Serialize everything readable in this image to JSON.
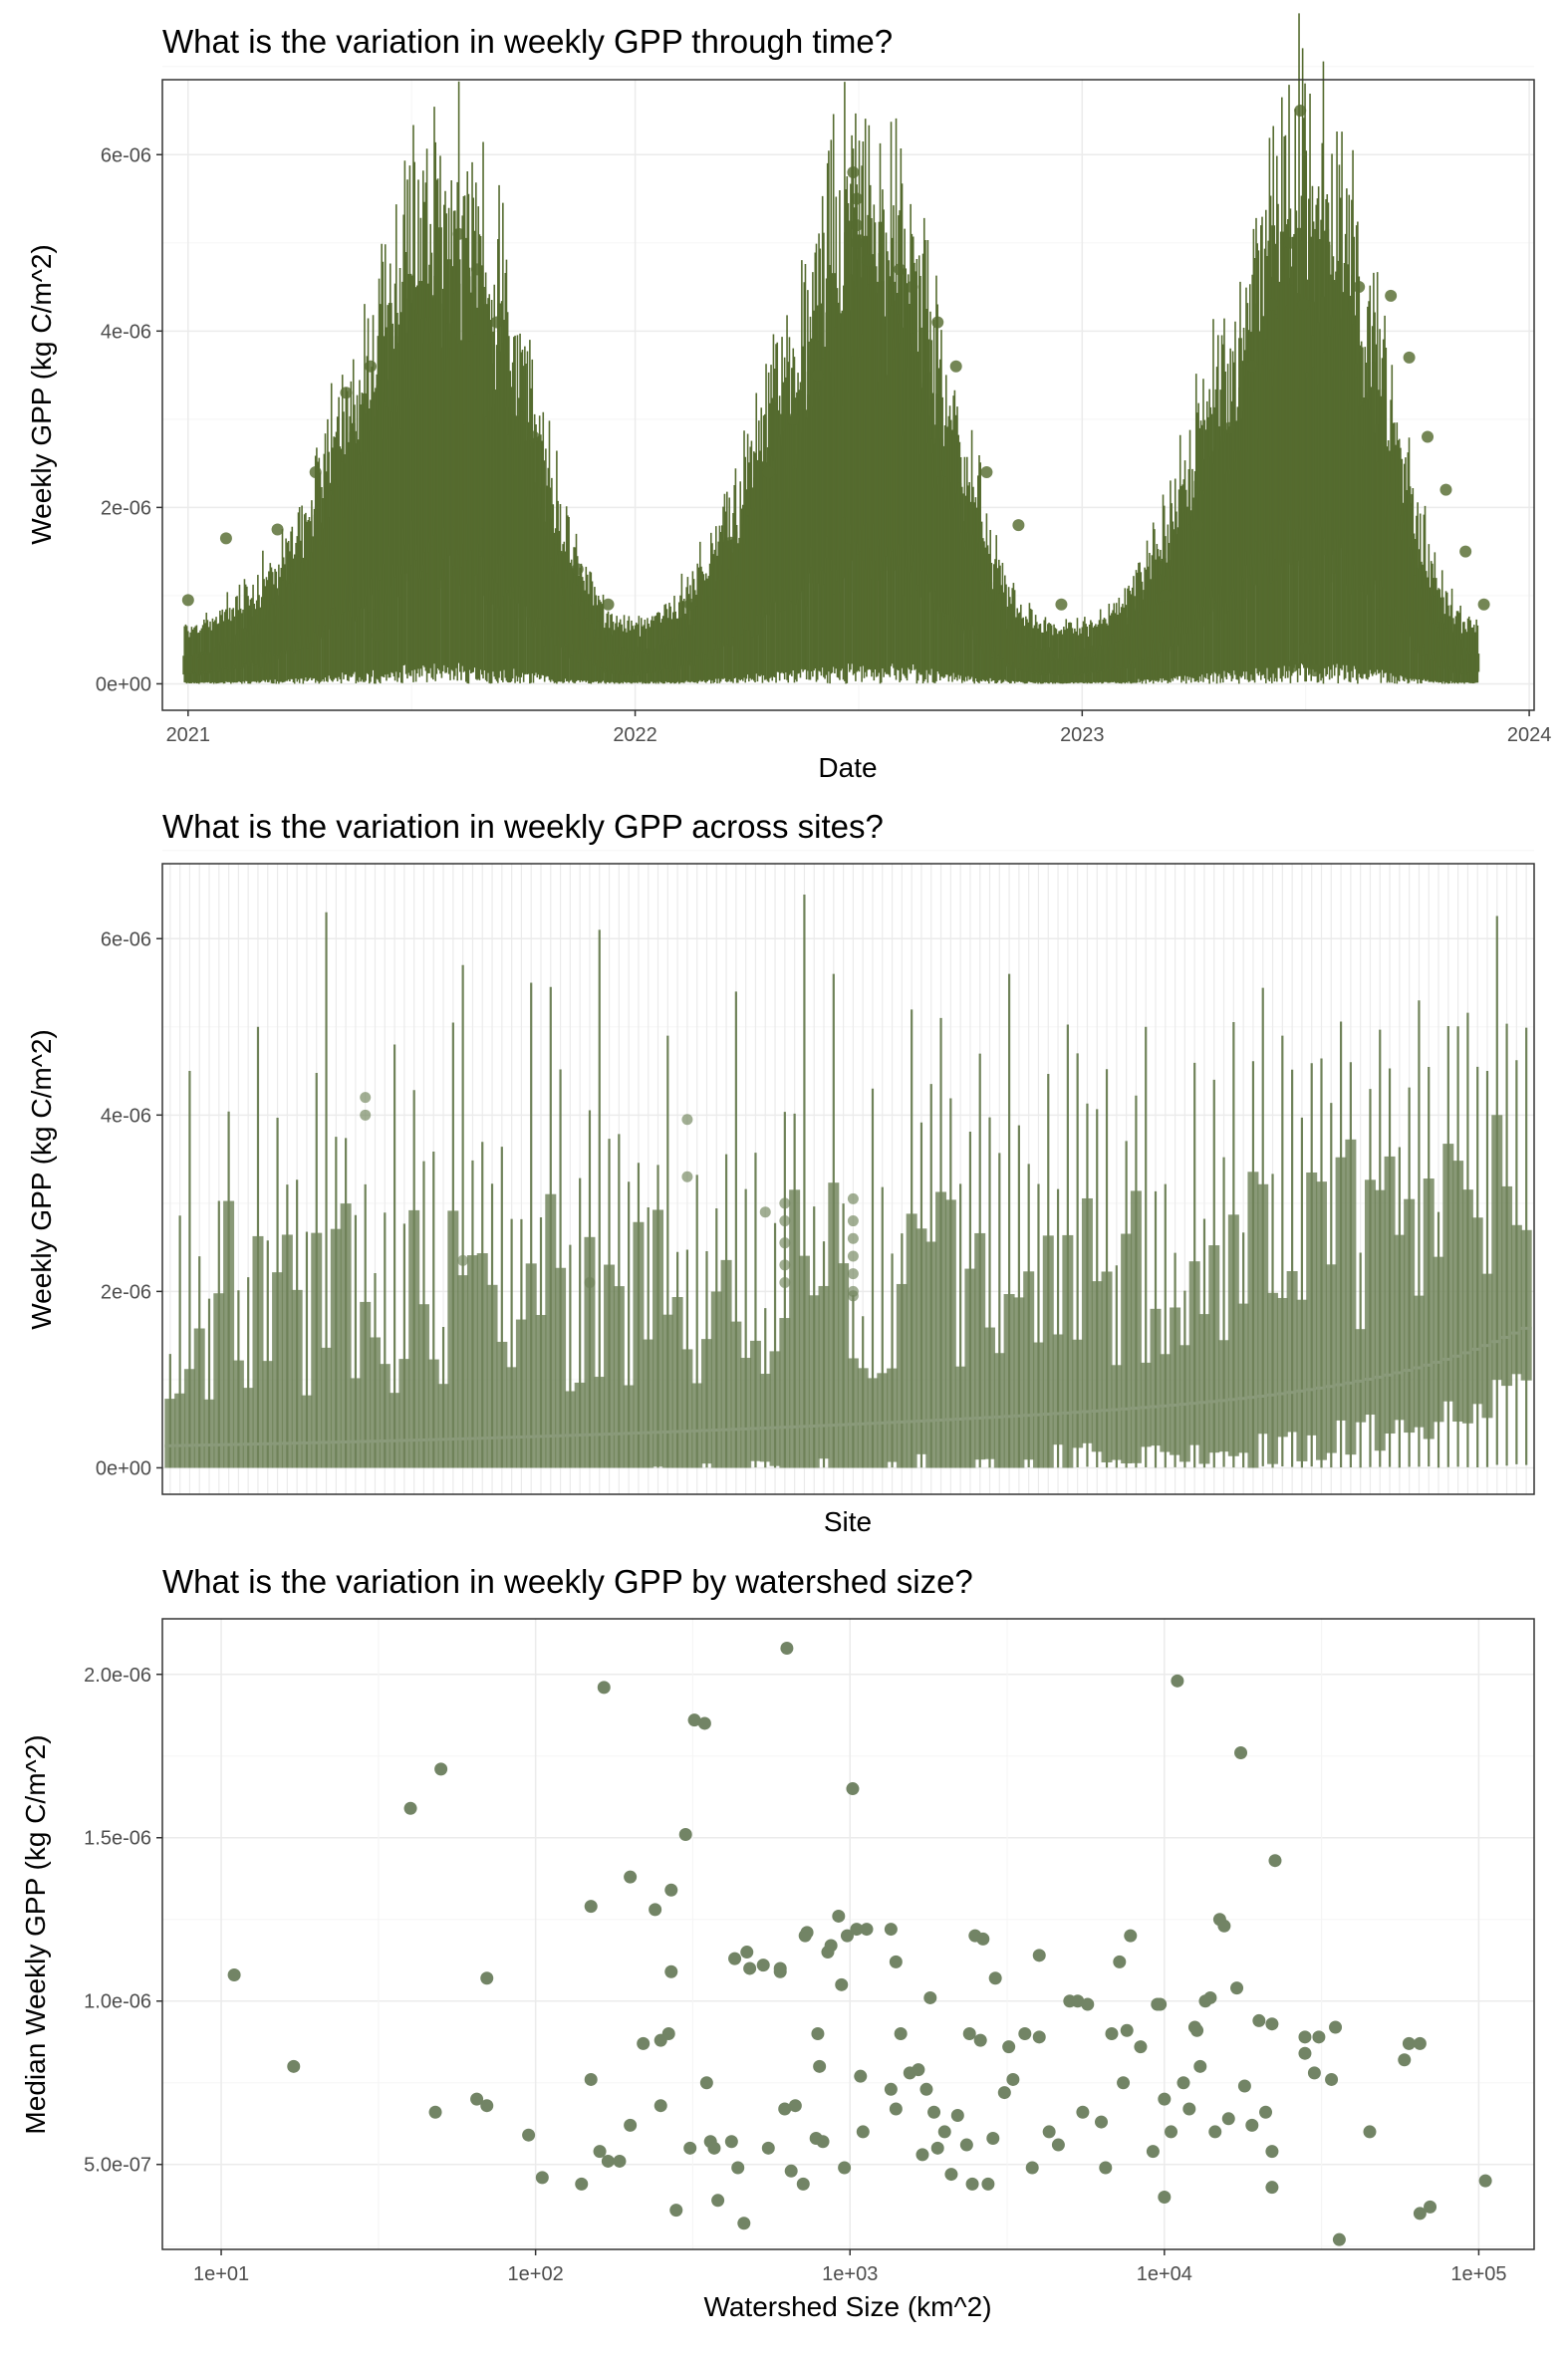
{
  "colors": {
    "time_series": "#556b2f",
    "site_series": "#6f8259",
    "watershed_points": "#728465",
    "panel_border": "#333333",
    "grid_major": "#ebebeb",
    "grid_minor": "#f5f5f5",
    "tick_text": "#4d4d4d"
  },
  "chart_data": [
    {
      "type": "box",
      "title": "What is the variation in weekly GPP through time?",
      "xlabel": "Date",
      "ylabel": "Weekly GPP (kg C/m^2)",
      "x_ticks": [
        "2021",
        "2022",
        "2023",
        "2024"
      ],
      "xlim": [
        "2020-12-11",
        "2024-01-05"
      ],
      "y_ticks": [
        "0e+00",
        "2e-06",
        "4e-06",
        "6e-06"
      ],
      "ylim": [
        -3e-07,
        6.85e-06
      ],
      "grid": true,
      "legend": "none",
      "weeks_first": "2021-01-01",
      "weeks_last": "2023-11-24",
      "weekly_medians": [
        2e-07,
        2.2e-07,
        2.4e-07,
        2.6e-07,
        2.9e-07,
        3.2e-07,
        3.6e-07,
        4e-07,
        4.5e-07,
        5.1e-07,
        5.8e-07,
        6.6e-07,
        7.5e-07,
        8.5e-07,
        9.6e-07,
        1.08e-06,
        1.2e-06,
        1.33e-06,
        1.46e-06,
        1.6e-06,
        1.74e-06,
        1.88e-06,
        2.02e-06,
        2.16e-06,
        2.3e-06,
        2.45e-06,
        2.58e-06,
        2.7e-06,
        2.78e-06,
        2.83e-06,
        2.85e-06,
        2.82e-06,
        2.76e-06,
        2.68e-06,
        2.58e-06,
        2.45e-06,
        2.3e-06,
        2.14e-06,
        1.96e-06,
        1.78e-06,
        1.6e-06,
        1.4e-06,
        1.2e-06,
        1.02e-06,
        8.5e-07,
        7e-07,
        5.7e-07,
        4.6e-07,
        3.7e-07,
        3e-07,
        2.6e-07,
        2.3e-07,
        2.2e-07,
        2.3e-07,
        2.5e-07,
        2.8e-07,
        3.2e-07,
        3.7e-07,
        4.3e-07,
        5e-07,
        5.8e-07,
        6.7e-07,
        7.7e-07,
        8.8e-07,
        1e-06,
        1.13e-06,
        1.27e-06,
        1.41e-06,
        1.56e-06,
        1.71e-06,
        1.86e-06,
        2e-06,
        2.14e-06,
        2.28e-06,
        2.42e-06,
        2.55e-06,
        2.67e-06,
        2.76e-06,
        2.82e-06,
        2.85e-06,
        2.83e-06,
        2.78e-06,
        2.7e-06,
        2.6e-06,
        2.47e-06,
        2.32e-06,
        2.15e-06,
        1.97e-06,
        1.78e-06,
        1.58e-06,
        1.38e-06,
        1.19e-06,
        1e-06,
        8.3e-07,
        6.7e-07,
        5.4e-07,
        4.3e-07,
        3.4e-07,
        2.8e-07,
        2.4e-07,
        2.2e-07,
        2.1e-07,
        2e-07,
        2e-07,
        2.1e-07,
        2.3e-07,
        2.6e-07,
        3e-07,
        3.5e-07,
        4.1e-07,
        4.8e-07,
        5.6e-07,
        6.5e-07,
        7.5e-07,
        8.6e-07,
        9.8e-07,
        1.11e-06,
        1.25e-06,
        1.4e-06,
        1.56e-06,
        1.72e-06,
        1.88e-06,
        2.04e-06,
        2.2e-06,
        2.36e-06,
        2.51e-06,
        2.65e-06,
        2.78e-06,
        2.88e-06,
        2.95e-06,
        2.98e-06,
        2.97e-06,
        2.92e-06,
        2.84e-06,
        2.73e-06,
        2.6e-06,
        2.44e-06,
        2.26e-06,
        2.06e-06,
        1.84e-06,
        1.62e-06,
        1.4e-06,
        1.18e-06,
        9.7e-07,
        7.8e-07,
        6.2e-07,
        4.8e-07,
        3.7e-07,
        2.9e-07,
        2.4e-07,
        2.1e-07
      ],
      "outliers": [
        {
          "x": "2021-01-01",
          "y": 9.5e-07
        },
        {
          "x": "2021-02-01",
          "y": 1.65e-06
        },
        {
          "x": "2021-03-15",
          "y": 1.75e-06
        },
        {
          "x": "2021-04-15",
          "y": 2.4e-06
        },
        {
          "x": "2021-05-10",
          "y": 3.3e-06
        },
        {
          "x": "2021-05-30",
          "y": 3.6e-06
        },
        {
          "x": "2021-06-05",
          "y": 5.5e-07
        },
        {
          "x": "2021-08-10",
          "y": 5.1e-06
        },
        {
          "x": "2021-08-25",
          "y": 4.7e-06
        },
        {
          "x": "2021-09-10",
          "y": 4.1e-06
        },
        {
          "x": "2021-10-10",
          "y": 2.8e-06
        },
        {
          "x": "2021-11-15",
          "y": 1.3e-06
        },
        {
          "x": "2021-12-10",
          "y": 9e-07
        },
        {
          "x": "2022-02-15",
          "y": 9e-07
        },
        {
          "x": "2022-03-20",
          "y": 1.6e-06
        },
        {
          "x": "2022-04-20",
          "y": 2.4e-06
        },
        {
          "x": "2022-05-10",
          "y": 3e-06
        },
        {
          "x": "2022-05-30",
          "y": 3.5e-06
        },
        {
          "x": "2022-06-28",
          "y": 5.8e-06
        },
        {
          "x": "2022-07-01",
          "y": 5.5e-06
        },
        {
          "x": "2022-07-01",
          "y": 5.2e-06
        },
        {
          "x": "2022-07-01",
          "y": 5e-06
        },
        {
          "x": "2022-07-10",
          "y": 4.8e-06
        },
        {
          "x": "2022-08-05",
          "y": 4.7e-06
        },
        {
          "x": "2022-08-15",
          "y": 4.5e-06
        },
        {
          "x": "2022-09-05",
          "y": 4.1e-06
        },
        {
          "x": "2022-09-20",
          "y": 3.6e-06
        },
        {
          "x": "2022-10-15",
          "y": 2.4e-06
        },
        {
          "x": "2022-11-10",
          "y": 1.8e-06
        },
        {
          "x": "2022-12-15",
          "y": 9e-07
        },
        {
          "x": "2023-03-10",
          "y": 1e-06
        },
        {
          "x": "2023-04-05",
          "y": 1.8e-06
        },
        {
          "x": "2023-05-01",
          "y": 2.9e-06
        },
        {
          "x": "2023-05-20",
          "y": 3.6e-06
        },
        {
          "x": "2023-06-05",
          "y": 4.3e-06
        },
        {
          "x": "2023-06-20",
          "y": 5e-06
        },
        {
          "x": "2023-06-22",
          "y": 2e-07
        },
        {
          "x": "2023-06-28",
          "y": 6.5e-06
        },
        {
          "x": "2023-07-01",
          "y": 4.3e-06
        },
        {
          "x": "2023-07-02",
          "y": 4e-07
        },
        {
          "x": "2023-07-10",
          "y": 1.5e-07
        },
        {
          "x": "2023-08-15",
          "y": 4.5e-06
        },
        {
          "x": "2023-09-10",
          "y": 4.4e-06
        },
        {
          "x": "2023-09-25",
          "y": 3.7e-06
        },
        {
          "x": "2023-10-10",
          "y": 2.8e-06
        },
        {
          "x": "2023-10-25",
          "y": 2.2e-06
        },
        {
          "x": "2023-11-10",
          "y": 1.5e-06
        },
        {
          "x": "2023-11-25",
          "y": 9e-07
        }
      ]
    },
    {
      "type": "box",
      "title": "What is the variation in weekly GPP across sites?",
      "xlabel": "Site",
      "ylabel": "Weekly GPP (kg C/m^2)",
      "y_ticks": [
        "0e+00",
        "2e-06",
        "4e-06",
        "6e-06"
      ],
      "ylim": [
        -3e-07,
        6.85e-06
      ],
      "grid": true,
      "legend": "none",
      "site_count": 140,
      "median_range": [
        2.5e-07,
        2.1e-06
      ],
      "whisker_max": [
        4.5e-06,
        5e-06,
        6.3e-06,
        4.8e-06,
        5.7e-06,
        5.5e-06,
        6.1e-06,
        4.9e-06,
        5.4e-06,
        6.5e-06,
        4.3e-06,
        5.1e-06,
        5.6e-06,
        4.7e-06,
        5e-06,
        4.4e-06,
        4.9e-06,
        4.6e-06,
        5.3e-06,
        4.5e-06,
        4.8e-06,
        5.1e-06
      ],
      "outliers": [
        {
          "site": 20,
          "y": 4.2e-06
        },
        {
          "site": 20,
          "y": 4e-06
        },
        {
          "site": 30,
          "y": 2.35e-06
        },
        {
          "site": 43,
          "y": 2.1e-06
        },
        {
          "site": 53,
          "y": 3.95e-06
        },
        {
          "site": 53,
          "y": 3.3e-06
        },
        {
          "site": 61,
          "y": 2.9e-06
        },
        {
          "site": 63,
          "y": 3e-06
        },
        {
          "site": 63,
          "y": 2.8e-06
        },
        {
          "site": 63,
          "y": 2.55e-06
        },
        {
          "site": 63,
          "y": 2.3e-06
        },
        {
          "site": 63,
          "y": 2.1e-06
        },
        {
          "site": 70,
          "y": 3.05e-06
        },
        {
          "site": 70,
          "y": 2.8e-06
        },
        {
          "site": 70,
          "y": 2.6e-06
        },
        {
          "site": 70,
          "y": 2.4e-06
        },
        {
          "site": 70,
          "y": 2.2e-06
        },
        {
          "site": 70,
          "y": 2e-06
        },
        {
          "site": 70,
          "y": 1.95e-06
        }
      ]
    },
    {
      "type": "scatter",
      "title": "What is the variation in weekly GPP by watershed size?",
      "xlabel": "Watershed Size (km^2)",
      "ylabel": "Median Weekly GPP (kg C/m^2)",
      "x_scale": "log10",
      "x_ticks": [
        "1e+01",
        "1e+02",
        "1e+03",
        "1e+04",
        "1e+05"
      ],
      "xlim": [
        6.5,
        150000
      ],
      "y_ticks": [
        "5.0e-07",
        "1.0e-06",
        "1.5e-06",
        "2.0e-06"
      ],
      "ylim": [
        2.4e-07,
        2.17e-06
      ],
      "grid": true,
      "legend": "none",
      "points": [
        {
          "x": 11,
          "y": 1.08e-06
        },
        {
          "x": 17,
          "y": 8e-07
        },
        {
          "x": 40,
          "y": 1.59e-06
        },
        {
          "x": 48,
          "y": 6.6e-07
        },
        {
          "x": 50,
          "y": 1.71e-06
        },
        {
          "x": 65,
          "y": 7e-07
        },
        {
          "x": 70,
          "y": 6.8e-07
        },
        {
          "x": 70,
          "y": 1.07e-06
        },
        {
          "x": 95,
          "y": 5.9e-07
        },
        {
          "x": 105,
          "y": 4.6e-07
        },
        {
          "x": 140,
          "y": 4.4e-07
        },
        {
          "x": 150,
          "y": 1.29e-06
        },
        {
          "x": 150,
          "y": 7.6e-07
        },
        {
          "x": 160,
          "y": 5.4e-07
        },
        {
          "x": 165,
          "y": 1.96e-06
        },
        {
          "x": 170,
          "y": 5.1e-07
        },
        {
          "x": 185,
          "y": 5.1e-07
        },
        {
          "x": 200,
          "y": 1.38e-06
        },
        {
          "x": 200,
          "y": 6.2e-07
        },
        {
          "x": 220,
          "y": 8.7e-07
        },
        {
          "x": 240,
          "y": 1.28e-06
        },
        {
          "x": 250,
          "y": 6.8e-07
        },
        {
          "x": 250,
          "y": 8.8e-07
        },
        {
          "x": 265,
          "y": 9e-07
        },
        {
          "x": 270,
          "y": 1.34e-06
        },
        {
          "x": 270,
          "y": 1.09e-06
        },
        {
          "x": 280,
          "y": 3.6e-07
        },
        {
          "x": 300,
          "y": 1.51e-06
        },
        {
          "x": 310,
          "y": 5.5e-07
        },
        {
          "x": 320,
          "y": 1.86e-06
        },
        {
          "x": 345,
          "y": 1.85e-06
        },
        {
          "x": 350,
          "y": 7.5e-07
        },
        {
          "x": 360,
          "y": 5.7e-07
        },
        {
          "x": 370,
          "y": 5.5e-07
        },
        {
          "x": 380,
          "y": 3.9e-07
        },
        {
          "x": 420,
          "y": 5.7e-07
        },
        {
          "x": 430,
          "y": 1.13e-06
        },
        {
          "x": 440,
          "y": 4.9e-07
        },
        {
          "x": 460,
          "y": 3.2e-07
        },
        {
          "x": 470,
          "y": 1.15e-06
        },
        {
          "x": 480,
          "y": 1.1e-06
        },
        {
          "x": 530,
          "y": 1.11e-06
        },
        {
          "x": 550,
          "y": 5.5e-07
        },
        {
          "x": 600,
          "y": 1.1e-06
        },
        {
          "x": 600,
          "y": 1.09e-06
        },
        {
          "x": 620,
          "y": 6.7e-07
        },
        {
          "x": 630,
          "y": 2.08e-06
        },
        {
          "x": 650,
          "y": 4.8e-07
        },
        {
          "x": 670,
          "y": 6.8e-07
        },
        {
          "x": 710,
          "y": 4.4e-07
        },
        {
          "x": 720,
          "y": 1.2e-06
        },
        {
          "x": 730,
          "y": 1.21e-06
        },
        {
          "x": 780,
          "y": 5.8e-07
        },
        {
          "x": 790,
          "y": 9e-07
        },
        {
          "x": 800,
          "y": 8e-07
        },
        {
          "x": 820,
          "y": 5.7e-07
        },
        {
          "x": 850,
          "y": 1.15e-06
        },
        {
          "x": 870,
          "y": 1.17e-06
        },
        {
          "x": 920,
          "y": 1.26e-06
        },
        {
          "x": 940,
          "y": 1.05e-06
        },
        {
          "x": 960,
          "y": 4.9e-07
        },
        {
          "x": 980,
          "y": 1.2e-06
        },
        {
          "x": 1020,
          "y": 1.65e-06
        },
        {
          "x": 1050,
          "y": 1.22e-06
        },
        {
          "x": 1080,
          "y": 7.7e-07
        },
        {
          "x": 1100,
          "y": 6e-07
        },
        {
          "x": 1130,
          "y": 1.22e-06
        },
        {
          "x": 1350,
          "y": 1.22e-06
        },
        {
          "x": 1350,
          "y": 7.3e-07
        },
        {
          "x": 1400,
          "y": 1.12e-06
        },
        {
          "x": 1400,
          "y": 6.7e-07
        },
        {
          "x": 1450,
          "y": 9e-07
        },
        {
          "x": 1550,
          "y": 7.8e-07
        },
        {
          "x": 1650,
          "y": 7.9e-07
        },
        {
          "x": 1700,
          "y": 5.3e-07
        },
        {
          "x": 1750,
          "y": 7.3e-07
        },
        {
          "x": 1800,
          "y": 1.01e-06
        },
        {
          "x": 1850,
          "y": 6.6e-07
        },
        {
          "x": 1900,
          "y": 5.5e-07
        },
        {
          "x": 2000,
          "y": 6e-07
        },
        {
          "x": 2100,
          "y": 4.7e-07
        },
        {
          "x": 2200,
          "y": 6.5e-07
        },
        {
          "x": 2350,
          "y": 5.6e-07
        },
        {
          "x": 2400,
          "y": 9e-07
        },
        {
          "x": 2450,
          "y": 4.4e-07
        },
        {
          "x": 2500,
          "y": 1.2e-06
        },
        {
          "x": 2600,
          "y": 8.8e-07
        },
        {
          "x": 2650,
          "y": 1.19e-06
        },
        {
          "x": 2750,
          "y": 4.4e-07
        },
        {
          "x": 2850,
          "y": 5.8e-07
        },
        {
          "x": 2900,
          "y": 1.07e-06
        },
        {
          "x": 3100,
          "y": 7.2e-07
        },
        {
          "x": 3200,
          "y": 8.6e-07
        },
        {
          "x": 3300,
          "y": 7.6e-07
        },
        {
          "x": 3600,
          "y": 9e-07
        },
        {
          "x": 3800,
          "y": 4.9e-07
        },
        {
          "x": 4000,
          "y": 8.9e-07
        },
        {
          "x": 4000,
          "y": 1.14e-06
        },
        {
          "x": 4300,
          "y": 6e-07
        },
        {
          "x": 4600,
          "y": 5.6e-07
        },
        {
          "x": 5000,
          "y": 1e-06
        },
        {
          "x": 5300,
          "y": 1e-06
        },
        {
          "x": 5500,
          "y": 6.6e-07
        },
        {
          "x": 5700,
          "y": 9.9e-07
        },
        {
          "x": 6300,
          "y": 6.3e-07
        },
        {
          "x": 6500,
          "y": 4.9e-07
        },
        {
          "x": 6800,
          "y": 9e-07
        },
        {
          "x": 7200,
          "y": 1.12e-06
        },
        {
          "x": 7400,
          "y": 7.5e-07
        },
        {
          "x": 7600,
          "y": 9.1e-07
        },
        {
          "x": 7800,
          "y": 1.2e-06
        },
        {
          "x": 8400,
          "y": 8.6e-07
        },
        {
          "x": 9200,
          "y": 5.4e-07
        },
        {
          "x": 9500,
          "y": 9.9e-07
        },
        {
          "x": 9700,
          "y": 9.9e-07
        },
        {
          "x": 10000,
          "y": 7e-07
        },
        {
          "x": 10000,
          "y": 4e-07
        },
        {
          "x": 10500,
          "y": 6e-07
        },
        {
          "x": 11000,
          "y": 1.98e-06
        },
        {
          "x": 11500,
          "y": 7.5e-07
        },
        {
          "x": 12000,
          "y": 6.7e-07
        },
        {
          "x": 12500,
          "y": 9.2e-07
        },
        {
          "x": 12700,
          "y": 9.1e-07
        },
        {
          "x": 13000,
          "y": 8e-07
        },
        {
          "x": 13500,
          "y": 1e-06
        },
        {
          "x": 14000,
          "y": 1.01e-06
        },
        {
          "x": 14500,
          "y": 6e-07
        },
        {
          "x": 15000,
          "y": 1.25e-06
        },
        {
          "x": 15500,
          "y": 1.23e-06
        },
        {
          "x": 16000,
          "y": 6.4e-07
        },
        {
          "x": 17000,
          "y": 1.04e-06
        },
        {
          "x": 17500,
          "y": 1.76e-06
        },
        {
          "x": 18000,
          "y": 7.4e-07
        },
        {
          "x": 19000,
          "y": 6.2e-07
        },
        {
          "x": 20000,
          "y": 9.4e-07
        },
        {
          "x": 21000,
          "y": 6.6e-07
        },
        {
          "x": 22000,
          "y": 9.3e-07
        },
        {
          "x": 22000,
          "y": 5.4e-07
        },
        {
          "x": 22000,
          "y": 4.3e-07
        },
        {
          "x": 22500,
          "y": 1.43e-06
        },
        {
          "x": 28000,
          "y": 8.9e-07
        },
        {
          "x": 28000,
          "y": 8.4e-07
        },
        {
          "x": 30000,
          "y": 7.8e-07
        },
        {
          "x": 31000,
          "y": 8.9e-07
        },
        {
          "x": 34000,
          "y": 7.6e-07
        },
        {
          "x": 35000,
          "y": 9.2e-07
        },
        {
          "x": 36000,
          "y": 2.7e-07
        },
        {
          "x": 45000,
          "y": 6e-07
        },
        {
          "x": 58000,
          "y": 8.2e-07
        },
        {
          "x": 60000,
          "y": 8.7e-07
        },
        {
          "x": 65000,
          "y": 8.7e-07
        },
        {
          "x": 65000,
          "y": 3.5e-07
        },
        {
          "x": 70000,
          "y": 3.7e-07
        },
        {
          "x": 105000,
          "y": 4.5e-07
        }
      ]
    }
  ]
}
